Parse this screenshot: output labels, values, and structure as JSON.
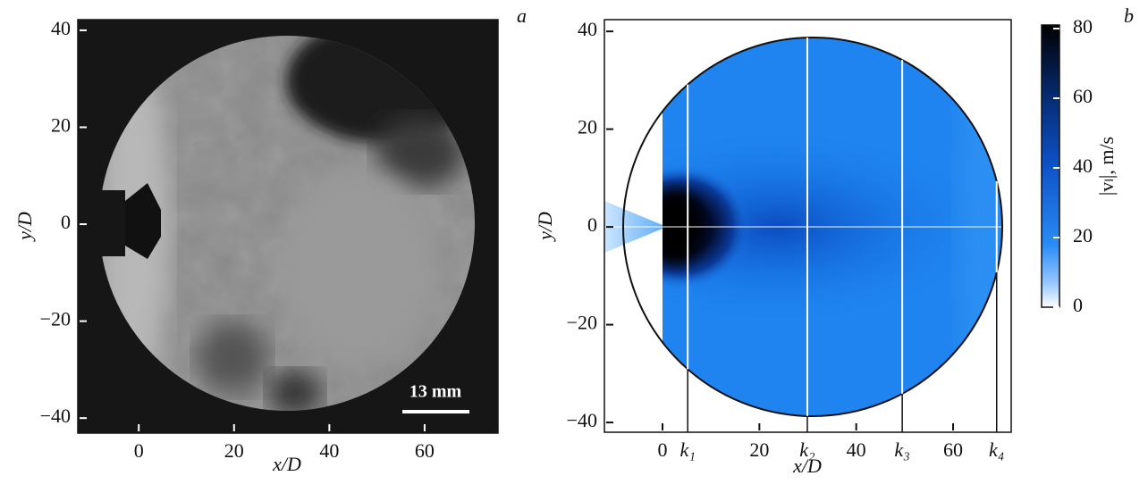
{
  "chart_data": [
    {
      "type": "image",
      "panel_label": "a",
      "xlabel": "x/D",
      "ylabel": "y/D",
      "xlim": [
        -12.8,
        75.4
      ],
      "ylim": [
        -43.1,
        42.2
      ],
      "xticks": [
        0,
        20,
        40,
        60
      ],
      "yticks": [
        {
          "value": -40,
          "label": "−40"
        },
        {
          "value": -20,
          "label": "−20"
        },
        0,
        20,
        40
      ],
      "scale_bar": "13 mm"
    },
    {
      "type": "heatmap",
      "panel_label": "b",
      "xlabel": "x/D",
      "ylabel": "y/D",
      "xlim": [
        -12,
        72
      ],
      "ylim": [
        -42,
        42.4
      ],
      "xticks": [
        0,
        {
          "value": 5.2,
          "label": "k₁"
        },
        20,
        {
          "value": 29.9,
          "label": "k₂"
        },
        40,
        {
          "value": 49.5,
          "label": "k₃"
        },
        60,
        {
          "value": 69,
          "label": "k₄"
        }
      ],
      "yticks": [
        {
          "value": -40,
          "label": "−40"
        },
        {
          "value": -20,
          "label": "−20"
        },
        0,
        20,
        40
      ],
      "colorbar": {
        "label": "|vₗ|, m/s",
        "lim": [
          0,
          80
        ],
        "ticks": [
          0,
          20,
          40,
          60,
          80
        ]
      }
    }
  ]
}
